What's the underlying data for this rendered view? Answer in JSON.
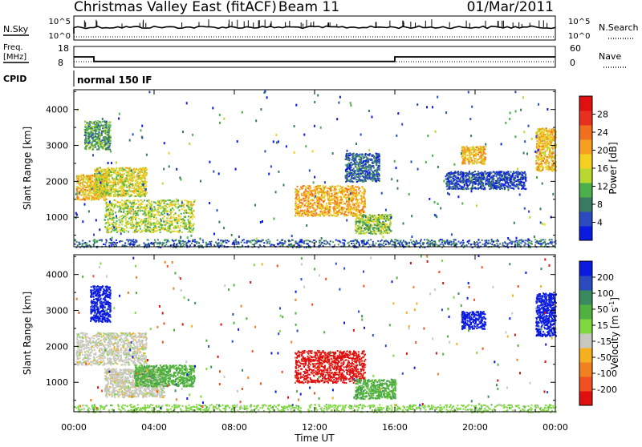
{
  "chart_data": [
    {
      "type": "line",
      "panel": "header-sky-search",
      "title": "Christmas Valley East (fitACF)",
      "beam_label": "Beam 11",
      "date": "01/Mar/2011",
      "left_label": "N.Sky",
      "left_ticks": [
        "10^5",
        "10^0"
      ],
      "right_label": "N.Search",
      "right_ticks": [
        "10^5",
        "10^0"
      ]
    },
    {
      "type": "line",
      "panel": "header-freq-nave",
      "left_label_lines": [
        "Freq.",
        "[MHz]"
      ],
      "left_ticks": [
        18,
        8
      ],
      "right_label": "Nave",
      "right_ticks": [
        60,
        0
      ],
      "freq_series": [
        {
          "t": 0.0,
          "value": 13.0
        },
        {
          "t": 1.0,
          "value": 13.0
        },
        {
          "t": 1.0,
          "value": 10.8
        },
        {
          "t": 16.0,
          "value": 10.8
        },
        {
          "t": 16.0,
          "value": 13.0
        },
        {
          "t": 24.0,
          "value": 13.0
        }
      ]
    },
    {
      "type": "heatmap",
      "panel": "power",
      "cpid_label": "CPID",
      "cpid_value": "normal 150 IF",
      "ylabel": "Slant Range [km]",
      "ylim": [
        180,
        4550
      ],
      "yticks": [
        1000,
        2000,
        3000,
        4000
      ],
      "xlim": [
        0,
        24
      ],
      "colorbar": {
        "label": "Power [dB]",
        "ticks": [
          "4",
          "8",
          "12",
          "16",
          "20",
          "24",
          "28"
        ],
        "colors": [
          "#0a1ae0",
          "#2a4bbf",
          "#3a7a60",
          "#4bb04b",
          "#b8d830",
          "#f5d020",
          "#f5a020",
          "#f07020",
          "#e83020",
          "#e01010"
        ]
      },
      "regions": [
        {
          "t0": 0.1,
          "t1": 1.6,
          "r0": 1500,
          "r1": 2200,
          "level": 0.6
        },
        {
          "t0": 1.0,
          "t1": 3.6,
          "r0": 1600,
          "r1": 2400,
          "level": 0.5
        },
        {
          "t0": 1.5,
          "t1": 6.0,
          "r0": 600,
          "r1": 1500,
          "level": 0.45
        },
        {
          "t0": 0.5,
          "t1": 1.8,
          "r0": 2900,
          "r1": 3700,
          "level": 0.3
        },
        {
          "t0": 11.0,
          "t1": 14.5,
          "r0": 1050,
          "r1": 1900,
          "level": 0.65
        },
        {
          "t0": 14.0,
          "t1": 15.8,
          "r0": 550,
          "r1": 1100,
          "level": 0.4
        },
        {
          "t0": 13.5,
          "t1": 15.2,
          "r0": 2000,
          "r1": 2800,
          "level": 0.15
        },
        {
          "t0": 19.3,
          "t1": 20.5,
          "r0": 2500,
          "r1": 3000,
          "level": 0.6
        },
        {
          "t0": 18.5,
          "t1": 22.5,
          "r0": 1800,
          "r1": 2300,
          "level": 0.1
        },
        {
          "t0": 23.0,
          "t1": 24.0,
          "r0": 2300,
          "r1": 3500,
          "level": 0.6
        },
        {
          "t0": 0.0,
          "t1": 24.0,
          "r0": 180,
          "r1": 400,
          "level": 0.15
        }
      ]
    },
    {
      "type": "heatmap",
      "panel": "velocity",
      "ylabel": "Slant Range [km]",
      "ylim": [
        180,
        4550
      ],
      "yticks": [
        1000,
        2000,
        3000,
        4000
      ],
      "xlim": [
        0,
        24
      ],
      "xticks": [
        "00:00",
        "04:00",
        "08:00",
        "12:00",
        "16:00",
        "20:00",
        "00:00"
      ],
      "xlabel": "Time UT",
      "colorbar": {
        "label": "Velocity",
        "unit_prefix": "[m s",
        "unit_exponent": "-1",
        "unit_suffix": "]",
        "ticks": [
          "200",
          "100",
          "50",
          "15",
          "-15",
          "-50",
          "-100",
          "-200"
        ],
        "colors": [
          "#0a1ae0",
          "#2a4bbf",
          "#3a8a60",
          "#50b040",
          "#80d840",
          "#c8c8c0",
          "#f5b020",
          "#f08020",
          "#f05020",
          "#e01010"
        ]
      },
      "regions": [
        {
          "t0": 0.1,
          "t1": 3.6,
          "r0": 1500,
          "r1": 2400,
          "color_index": 5
        },
        {
          "t0": 1.5,
          "t1": 4.5,
          "r0": 600,
          "r1": 1400,
          "color_index": 5
        },
        {
          "t0": 3.0,
          "t1": 6.0,
          "r0": 900,
          "r1": 1500,
          "color_index": 3
        },
        {
          "t0": 0.8,
          "t1": 1.8,
          "r0": 2700,
          "r1": 3700,
          "color_index": 0
        },
        {
          "t0": 11.0,
          "t1": 14.5,
          "r0": 1000,
          "r1": 1900,
          "color_index": 9
        },
        {
          "t0": 14.0,
          "t1": 16.0,
          "r0": 550,
          "r1": 1100,
          "color_index": 3
        },
        {
          "t0": 19.3,
          "t1": 20.5,
          "r0": 2500,
          "r1": 3000,
          "color_index": 0
        },
        {
          "t0": 23.0,
          "t1": 24.0,
          "r0": 2300,
          "r1": 3500,
          "color_index": 0
        },
        {
          "t0": 0.0,
          "t1": 24.0,
          "r0": 180,
          "r1": 400,
          "color_index": 4
        }
      ]
    }
  ]
}
